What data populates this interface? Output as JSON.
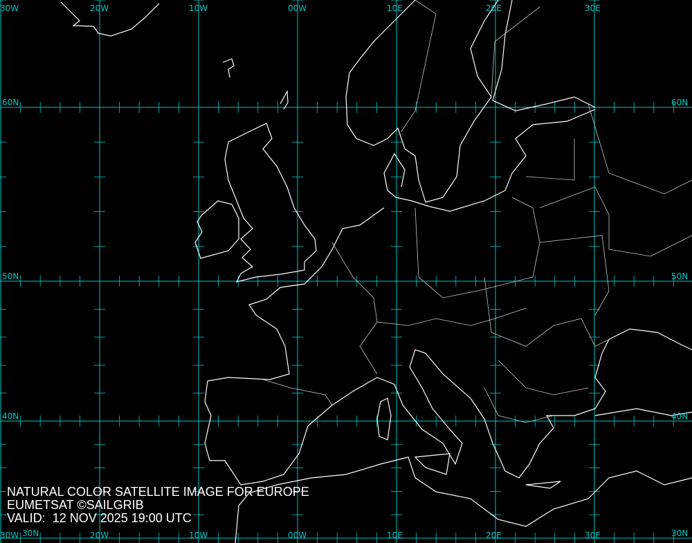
{
  "caption": {
    "line1": "NATURAL COLOR SATELLITE IMAGE FOR EUROPE",
    "line2": "EUMETSAT ©SAILGRIB",
    "line3": "VALID:  12 NOV 2025 19:00 UTC"
  },
  "grid": {
    "color": "#00c8c8",
    "longitudes": [
      {
        "value": -30,
        "label": "30W"
      },
      {
        "value": -20,
        "label": "20W"
      },
      {
        "value": -10,
        "label": "10W"
      },
      {
        "value": 0,
        "label": "00W"
      },
      {
        "value": 10,
        "label": "10E"
      },
      {
        "value": 20,
        "label": "20E"
      },
      {
        "value": 30,
        "label": "30E"
      }
    ],
    "latitudes": [
      {
        "value": 60,
        "label": "60N"
      },
      {
        "value": 50,
        "label": "50N"
      },
      {
        "value": 40,
        "label": "40N"
      },
      {
        "value": 30,
        "label": "30N"
      }
    ]
  },
  "coastline_color": "#ffffff",
  "border_color": "#c8c8c8"
}
